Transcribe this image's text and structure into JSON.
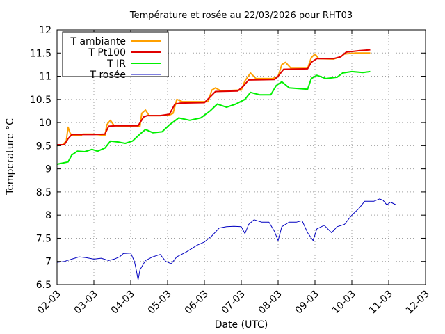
{
  "chart_data": {
    "type": "line",
    "title": "Température et rosée au 22/03/2026 pour RHT03",
    "xlabel": "Date (UTC)",
    "ylabel": "Temperature °C",
    "xticks": [
      "02-03",
      "03-03",
      "04-03",
      "05-03",
      "06-03",
      "07-03",
      "08-03",
      "09-03",
      "10-03",
      "11-03",
      "12-03"
    ],
    "xlim": [
      0,
      10
    ],
    "ylim": [
      6.5,
      12
    ],
    "yticks": [
      "6.5",
      "7",
      "7.5",
      "8",
      "8.5",
      "9",
      "9.5",
      "10",
      "10.5",
      "11",
      "11.5",
      "12"
    ],
    "grid": true,
    "legend_position": "top-left",
    "x_unit_note_hidden": true,
    "series": [
      {
        "name": "T ambiante",
        "color": "#ffa000",
        "points": [
          [
            0,
            9.5
          ],
          [
            0.15,
            9.52
          ],
          [
            0.25,
            9.6
          ],
          [
            0.3,
            9.9
          ],
          [
            0.35,
            9.78
          ],
          [
            0.4,
            9.72
          ],
          [
            0.65,
            9.72
          ],
          [
            0.7,
            9.75
          ],
          [
            1.0,
            9.75
          ],
          [
            1.3,
            9.72
          ],
          [
            1.35,
            9.95
          ],
          [
            1.45,
            10.05
          ],
          [
            1.55,
            9.93
          ],
          [
            1.85,
            9.92
          ],
          [
            2.15,
            9.93
          ],
          [
            2.25,
            9.92
          ],
          [
            2.3,
            10.2
          ],
          [
            2.4,
            10.27
          ],
          [
            2.5,
            10.15
          ],
          [
            2.8,
            10.15
          ],
          [
            3.05,
            10.16
          ],
          [
            3.15,
            10.2
          ],
          [
            3.25,
            10.5
          ],
          [
            3.4,
            10.45
          ],
          [
            3.6,
            10.45
          ],
          [
            4.1,
            10.45
          ],
          [
            4.2,
            10.7
          ],
          [
            4.3,
            10.75
          ],
          [
            4.45,
            10.68
          ],
          [
            4.9,
            10.7
          ],
          [
            5.0,
            10.7
          ],
          [
            5.1,
            10.9
          ],
          [
            5.25,
            11.07
          ],
          [
            5.4,
            10.95
          ],
          [
            5.85,
            10.95
          ],
          [
            6.0,
            11.0
          ],
          [
            6.1,
            11.25
          ],
          [
            6.2,
            11.3
          ],
          [
            6.35,
            11.17
          ],
          [
            6.8,
            11.17
          ],
          [
            6.9,
            11.4
          ],
          [
            7.0,
            11.48
          ],
          [
            7.1,
            11.38
          ],
          [
            7.5,
            11.37
          ],
          [
            7.7,
            11.42
          ],
          [
            7.8,
            11.48
          ],
          [
            8.1,
            11.5
          ],
          [
            8.5,
            11.5
          ]
        ]
      },
      {
        "name": "T Pt100",
        "color": "#e00000",
        "points": [
          [
            0,
            9.52
          ],
          [
            0.2,
            9.52
          ],
          [
            0.3,
            9.65
          ],
          [
            0.4,
            9.74
          ],
          [
            0.7,
            9.74
          ],
          [
            1.0,
            9.74
          ],
          [
            1.3,
            9.75
          ],
          [
            1.4,
            9.92
          ],
          [
            1.6,
            9.93
          ],
          [
            2.0,
            9.93
          ],
          [
            2.2,
            9.93
          ],
          [
            2.35,
            10.12
          ],
          [
            2.45,
            10.15
          ],
          [
            2.8,
            10.15
          ],
          [
            3.05,
            10.18
          ],
          [
            3.2,
            10.4
          ],
          [
            3.35,
            10.42
          ],
          [
            4.0,
            10.43
          ],
          [
            4.15,
            10.55
          ],
          [
            4.3,
            10.67
          ],
          [
            4.9,
            10.68
          ],
          [
            5.05,
            10.78
          ],
          [
            5.2,
            10.92
          ],
          [
            5.9,
            10.93
          ],
          [
            6.0,
            11.0
          ],
          [
            6.15,
            11.15
          ],
          [
            6.8,
            11.16
          ],
          [
            6.9,
            11.3
          ],
          [
            7.05,
            11.38
          ],
          [
            7.5,
            11.38
          ],
          [
            7.7,
            11.42
          ],
          [
            7.85,
            11.52
          ],
          [
            8.2,
            11.55
          ],
          [
            8.5,
            11.57
          ]
        ]
      },
      {
        "name": "T IR",
        "color": "#00f000",
        "points": [
          [
            0,
            9.1
          ],
          [
            0.3,
            9.15
          ],
          [
            0.4,
            9.3
          ],
          [
            0.55,
            9.38
          ],
          [
            0.75,
            9.37
          ],
          [
            0.95,
            9.42
          ],
          [
            1.1,
            9.38
          ],
          [
            1.3,
            9.45
          ],
          [
            1.45,
            9.6
          ],
          [
            1.65,
            9.58
          ],
          [
            1.85,
            9.55
          ],
          [
            2.05,
            9.6
          ],
          [
            2.25,
            9.75
          ],
          [
            2.4,
            9.85
          ],
          [
            2.6,
            9.78
          ],
          [
            2.85,
            9.8
          ],
          [
            3.05,
            9.95
          ],
          [
            3.3,
            10.1
          ],
          [
            3.6,
            10.05
          ],
          [
            3.9,
            10.1
          ],
          [
            4.15,
            10.25
          ],
          [
            4.35,
            10.4
          ],
          [
            4.6,
            10.33
          ],
          [
            4.85,
            10.4
          ],
          [
            5.1,
            10.5
          ],
          [
            5.25,
            10.65
          ],
          [
            5.5,
            10.6
          ],
          [
            5.8,
            10.6
          ],
          [
            5.95,
            10.8
          ],
          [
            6.1,
            10.88
          ],
          [
            6.3,
            10.75
          ],
          [
            6.8,
            10.72
          ],
          [
            6.9,
            10.95
          ],
          [
            7.05,
            11.02
          ],
          [
            7.3,
            10.95
          ],
          [
            7.6,
            10.98
          ],
          [
            7.75,
            11.07
          ],
          [
            8.0,
            11.1
          ],
          [
            8.3,
            11.08
          ],
          [
            8.5,
            11.1
          ]
        ]
      },
      {
        "name": "T rosée",
        "color": "#0000c0",
        "points": [
          [
            0,
            6.98
          ],
          [
            0.2,
            7.0
          ],
          [
            0.4,
            7.05
          ],
          [
            0.6,
            7.1
          ],
          [
            0.8,
            7.08
          ],
          [
            1.0,
            7.05
          ],
          [
            1.2,
            7.07
          ],
          [
            1.4,
            7.02
          ],
          [
            1.55,
            7.05
          ],
          [
            1.7,
            7.1
          ],
          [
            1.8,
            7.17
          ],
          [
            2.0,
            7.18
          ],
          [
            2.1,
            7.0
          ],
          [
            2.15,
            6.82
          ],
          [
            2.2,
            6.6
          ],
          [
            2.25,
            6.82
          ],
          [
            2.4,
            7.02
          ],
          [
            2.6,
            7.1
          ],
          [
            2.8,
            7.15
          ],
          [
            2.95,
            7.0
          ],
          [
            3.1,
            6.95
          ],
          [
            3.25,
            7.1
          ],
          [
            3.5,
            7.2
          ],
          [
            3.8,
            7.35
          ],
          [
            4.0,
            7.42
          ],
          [
            4.2,
            7.55
          ],
          [
            4.4,
            7.72
          ],
          [
            4.6,
            7.75
          ],
          [
            4.8,
            7.76
          ],
          [
            5.0,
            7.75
          ],
          [
            5.1,
            7.6
          ],
          [
            5.2,
            7.8
          ],
          [
            5.35,
            7.9
          ],
          [
            5.55,
            7.85
          ],
          [
            5.75,
            7.85
          ],
          [
            5.9,
            7.65
          ],
          [
            6.0,
            7.45
          ],
          [
            6.1,
            7.75
          ],
          [
            6.3,
            7.85
          ],
          [
            6.5,
            7.85
          ],
          [
            6.65,
            7.88
          ],
          [
            6.8,
            7.62
          ],
          [
            6.95,
            7.45
          ],
          [
            7.05,
            7.7
          ],
          [
            7.25,
            7.78
          ],
          [
            7.45,
            7.62
          ],
          [
            7.6,
            7.75
          ],
          [
            7.8,
            7.8
          ],
          [
            8.0,
            8.0
          ],
          [
            8.2,
            8.15
          ],
          [
            8.35,
            8.3
          ],
          [
            8.6,
            8.3
          ],
          [
            8.75,
            8.35
          ],
          [
            8.85,
            8.32
          ],
          [
            8.95,
            8.22
          ],
          [
            9.05,
            8.28
          ],
          [
            9.2,
            8.22
          ]
        ]
      }
    ]
  }
}
